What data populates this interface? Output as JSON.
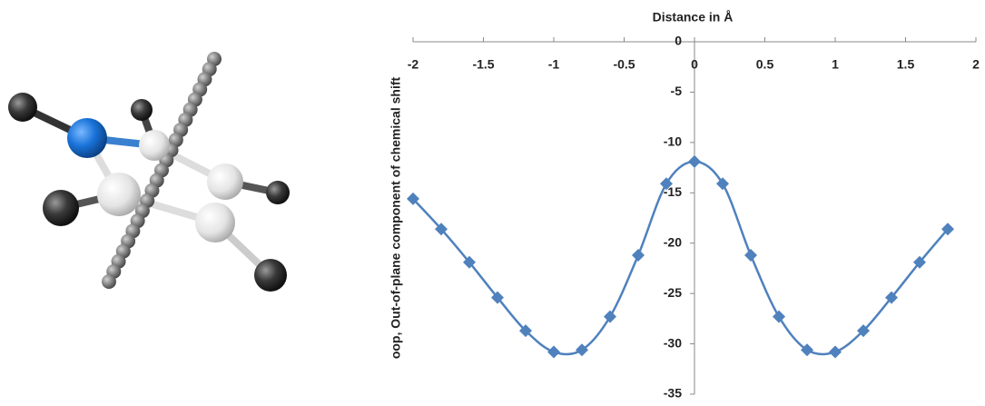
{
  "chart_data": {
    "type": "line",
    "xlabel": "Distance in Å",
    "ylabel": "oop, Out-of-plane component of chemical shift",
    "x": [
      -2,
      -1.8,
      -1.6,
      -1.4,
      -1.2,
      -1.0,
      -0.8,
      -0.6,
      -0.4,
      -0.2,
      0,
      0.2,
      0.4,
      0.6,
      0.8,
      1.0,
      1.2,
      1.4,
      1.6,
      1.8
    ],
    "series": [
      {
        "color": "#4f81bd",
        "values": [
          -15.6,
          -18.6,
          -21.9,
          -25.4,
          -28.7,
          -30.8,
          -30.6,
          -27.3,
          -21.2,
          -14.1,
          -11.9,
          -14.1,
          -21.2,
          -27.3,
          -30.6,
          -30.8,
          -28.7,
          -25.4,
          -21.9,
          -18.6
        ]
      }
    ],
    "xlim": [
      -2,
      2
    ],
    "xticks": [
      -2,
      -1.5,
      -1,
      -0.5,
      0,
      0.5,
      1,
      1.5,
      2
    ],
    "ylim": [
      -35,
      0
    ],
    "yticks": [
      0,
      -5,
      -10,
      -15,
      -20,
      -25,
      -30,
      -35
    ]
  }
}
